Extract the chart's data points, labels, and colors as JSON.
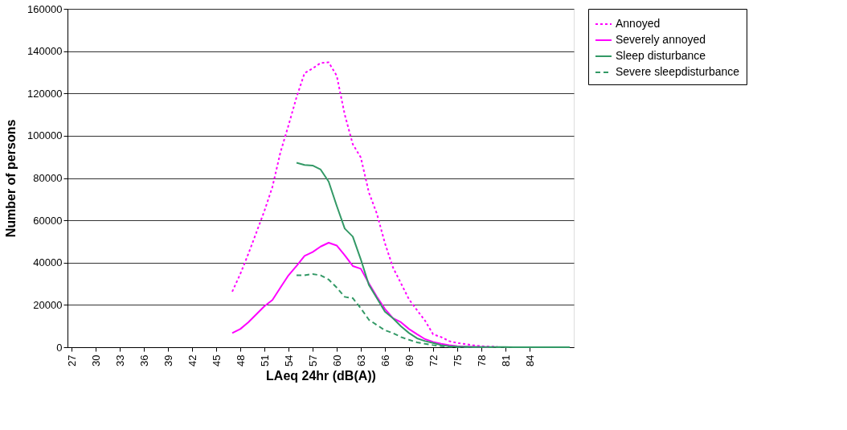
{
  "chart_data": {
    "type": "line",
    "xlabel": "LAeq 24hr (dB(A))",
    "ylabel": "Number of persons",
    "xlim": [
      26.5,
      89.5
    ],
    "xticks": [
      27,
      30,
      33,
      36,
      39,
      42,
      45,
      48,
      51,
      54,
      57,
      60,
      63,
      66,
      69,
      72,
      75,
      78,
      81,
      84
    ],
    "ylim": [
      0,
      160000
    ],
    "yticks": [
      0,
      20000,
      40000,
      60000,
      80000,
      100000,
      120000,
      140000,
      160000
    ],
    "grid": "y",
    "legend": "right",
    "marker": "none",
    "series": [
      {
        "name": "Annoyed",
        "color": "#ff00ff",
        "line_style": "dotted",
        "x": [
          47,
          48,
          49,
          50,
          51,
          52,
          53,
          54,
          55,
          56,
          57,
          58,
          59,
          60,
          61,
          62,
          63,
          64,
          65,
          66,
          67,
          68,
          69,
          70,
          71,
          72,
          73,
          74,
          75,
          76,
          77,
          78,
          79,
          80
        ],
        "values": [
          26300,
          34600,
          44100,
          54200,
          64400,
          75800,
          92200,
          104900,
          118200,
          129600,
          131800,
          134400,
          134700,
          128400,
          110000,
          96000,
          89700,
          73200,
          63100,
          49200,
          37700,
          30200,
          22600,
          17500,
          12500,
          6100,
          4800,
          2900,
          2000,
          1500,
          900,
          500,
          300,
          200
        ]
      },
      {
        "name": "Severely annoyed",
        "color": "#ff00ff",
        "line_style": "solid",
        "x": [
          47,
          48,
          49,
          50,
          51,
          52,
          53,
          54,
          55,
          56,
          57,
          58,
          59,
          60,
          61,
          62,
          63,
          64,
          65,
          66,
          67,
          68,
          69,
          70,
          71,
          72,
          73,
          74,
          75,
          76,
          77,
          78,
          79
        ],
        "values": [
          6700,
          8600,
          11800,
          15600,
          19400,
          22300,
          28200,
          34000,
          38400,
          43200,
          45000,
          47600,
          49400,
          48100,
          43500,
          38400,
          37100,
          30200,
          23800,
          18100,
          13700,
          11800,
          8600,
          6100,
          3800,
          2500,
          1600,
          1000,
          500,
          300,
          200,
          100,
          0
        ]
      },
      {
        "name": "Sleep disturbance",
        "color": "#339966",
        "line_style": "solid",
        "x": [
          55,
          56,
          57,
          58,
          59,
          60,
          61,
          62,
          63,
          64,
          65,
          66,
          67,
          68,
          69,
          70,
          71,
          72,
          73,
          74,
          75,
          76,
          77,
          78,
          79,
          80,
          81,
          82,
          83,
          84,
          85,
          86,
          87,
          88,
          89
        ],
        "values": [
          87200,
          86200,
          85900,
          84000,
          78300,
          66900,
          56100,
          52300,
          41500,
          29500,
          23200,
          16800,
          13700,
          9900,
          6700,
          4200,
          2900,
          2000,
          1000,
          500,
          300,
          200,
          100,
          100,
          100,
          100,
          100,
          0,
          0,
          0,
          0,
          0,
          0,
          0,
          0
        ]
      },
      {
        "name": "Severe sleepdisturbance",
        "color": "#339966",
        "line_style": "dashed",
        "x": [
          55,
          56,
          57,
          58,
          59,
          60,
          61,
          62,
          63,
          64,
          65,
          66,
          67,
          68,
          69,
          70,
          71,
          72,
          73,
          74,
          75,
          76,
          77,
          78,
          79,
          80,
          81,
          82,
          83,
          84,
          85,
          86,
          87,
          88,
          89
        ],
        "values": [
          34000,
          34000,
          34600,
          34000,
          32000,
          28200,
          23800,
          23200,
          18400,
          13000,
          10500,
          8000,
          6700,
          4800,
          3500,
          2300,
          1600,
          1000,
          500,
          200,
          100,
          100,
          0,
          0,
          0,
          0,
          0,
          0,
          0,
          0,
          0,
          0,
          0,
          0,
          0
        ]
      }
    ]
  }
}
